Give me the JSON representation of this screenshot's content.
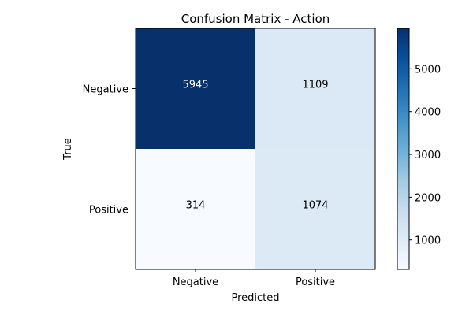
{
  "chart_data": {
    "type": "heatmap",
    "title": "Confusion Matrix - Action",
    "xlabel": "Predicted",
    "ylabel": "True",
    "x_categories": [
      "Negative",
      "Positive"
    ],
    "y_categories": [
      "Negative",
      "Positive"
    ],
    "values": [
      [
        5945,
        1109
      ],
      [
        314,
        1074
      ]
    ],
    "colormap": "Blues",
    "color_range": [
      314,
      5945
    ],
    "colorbar_ticks": [
      1000,
      2000,
      3000,
      4000,
      5000
    ],
    "grid": false
  }
}
